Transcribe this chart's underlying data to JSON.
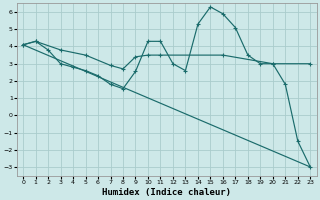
{
  "xlabel": "Humidex (Indice chaleur)",
  "bg_color": "#cde8e8",
  "grid_color": "#aacccc",
  "line_color": "#1a6b6b",
  "xlim": [
    -0.5,
    23.5
  ],
  "ylim": [
    -3.5,
    6.5
  ],
  "yticks": [
    -3,
    -2,
    -1,
    0,
    1,
    2,
    3,
    4,
    5,
    6
  ],
  "xticks": [
    0,
    1,
    2,
    3,
    4,
    5,
    6,
    7,
    8,
    9,
    10,
    11,
    12,
    13,
    14,
    15,
    16,
    17,
    18,
    19,
    20,
    21,
    22,
    23
  ],
  "line1_x": [
    0,
    1,
    2,
    3,
    4,
    5,
    6,
    7,
    8,
    9,
    10,
    11,
    12,
    13,
    14,
    15,
    16,
    17,
    18,
    19,
    20,
    21,
    22,
    23
  ],
  "line1_y": [
    4.1,
    4.3,
    3.8,
    3.0,
    2.8,
    2.6,
    2.3,
    1.8,
    1.55,
    2.55,
    4.3,
    4.3,
    3.0,
    2.6,
    5.3,
    6.3,
    5.9,
    5.1,
    3.5,
    3.0,
    3.0,
    1.8,
    -1.5,
    -3.0
  ],
  "line2_x": [
    0,
    1,
    3,
    5,
    7,
    8,
    9,
    10,
    11,
    16,
    20,
    23
  ],
  "line2_y": [
    4.1,
    4.3,
    3.8,
    3.5,
    2.9,
    2.7,
    3.4,
    3.5,
    3.5,
    3.5,
    3.0,
    3.0
  ],
  "line3_x": [
    0,
    23
  ],
  "line3_y": [
    4.1,
    -3.0
  ]
}
